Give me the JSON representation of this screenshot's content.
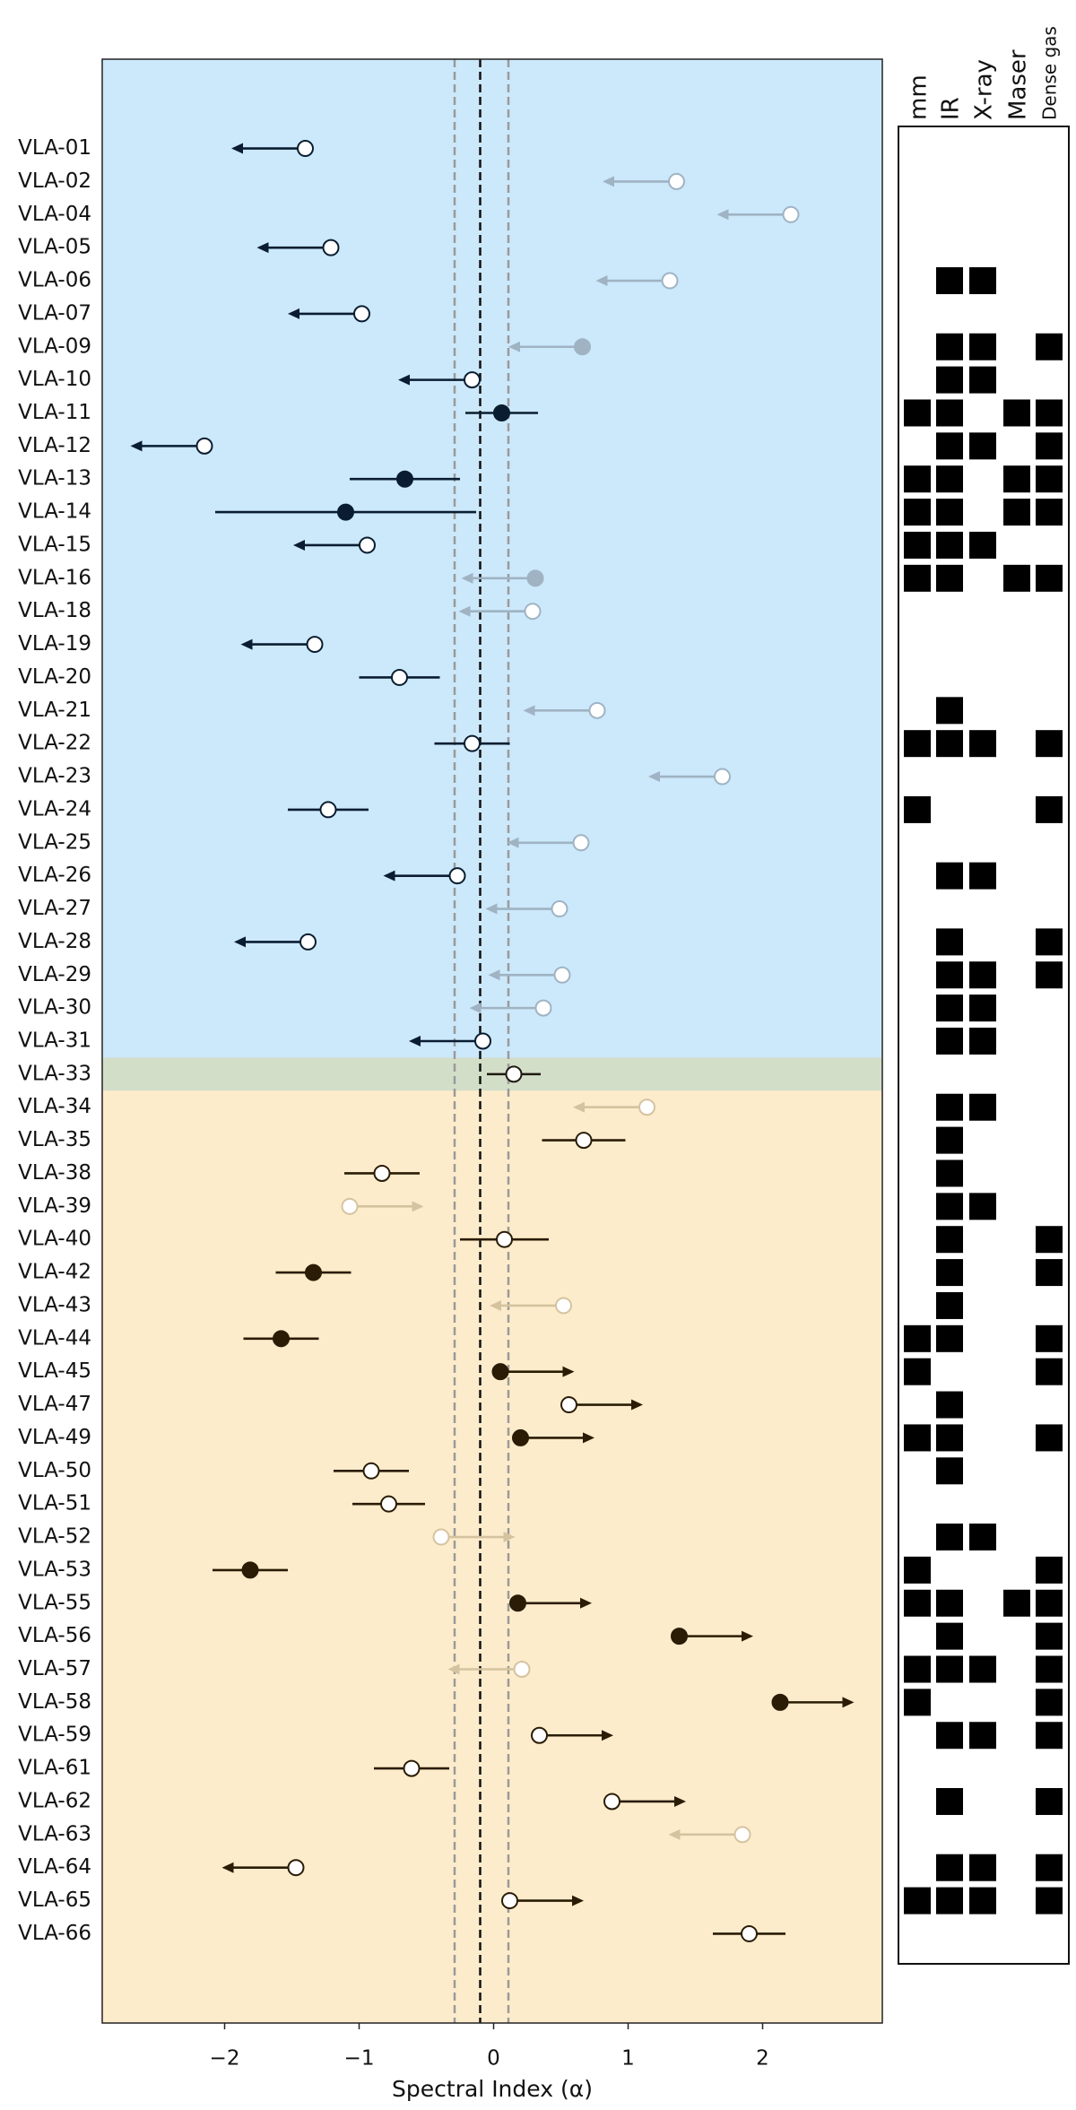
{
  "chart_data": {
    "type": "forest",
    "x_label": "Spectral Index (α)",
    "categories": [
      "VLA-01",
      "VLA-02",
      "VLA-04",
      "VLA-05",
      "VLA-06",
      "VLA-07",
      "VLA-09",
      "VLA-10",
      "VLA-11",
      "VLA-12",
      "VLA-13",
      "VLA-14",
      "VLA-15",
      "VLA-16",
      "VLA-18",
      "VLA-19",
      "VLA-20",
      "VLA-21",
      "VLA-22",
      "VLA-23",
      "VLA-24",
      "VLA-25",
      "VLA-26",
      "VLA-27",
      "VLA-28",
      "VLA-29",
      "VLA-30",
      "VLA-31",
      "VLA-33",
      "VLA-34",
      "VLA-35",
      "VLA-38",
      "VLA-39",
      "VLA-40",
      "VLA-42",
      "VLA-43",
      "VLA-44",
      "VLA-45",
      "VLA-47",
      "VLA-49",
      "VLA-50",
      "VLA-51",
      "VLA-52",
      "VLA-53",
      "VLA-55",
      "VLA-56",
      "VLA-57",
      "VLA-58",
      "VLA-59",
      "VLA-61",
      "VLA-62",
      "VLA-63",
      "VLA-64",
      "VLA-65",
      "VLA-66"
    ],
    "values": [
      -1.4,
      1.36,
      2.21,
      -1.21,
      1.31,
      -0.98,
      0.66,
      -0.16,
      0.06,
      -2.15,
      -0.66,
      -1.1,
      -0.94,
      0.31,
      0.29,
      -1.33,
      -0.7,
      0.77,
      -0.16,
      1.7,
      -1.23,
      0.65,
      -0.27,
      0.49,
      -1.38,
      0.51,
      0.37,
      -0.08,
      0.15,
      1.14,
      0.67,
      -0.83,
      -1.07,
      0.08,
      -1.34,
      0.52,
      -1.58,
      0.05,
      0.56,
      0.2,
      -0.91,
      -0.78,
      -0.39,
      -1.81,
      0.18,
      1.38,
      0.21,
      2.13,
      0.34,
      -0.61,
      0.88,
      1.85,
      -1.47,
      0.12,
      1.9
    ],
    "errors": [
      null,
      null,
      null,
      null,
      null,
      null,
      null,
      null,
      0.27,
      null,
      0.41,
      0.97,
      null,
      null,
      null,
      null,
      0.3,
      null,
      0.28,
      null,
      0.3,
      null,
      null,
      null,
      null,
      null,
      null,
      null,
      0.2,
      null,
      0.31,
      0.28,
      null,
      0.33,
      0.28,
      null,
      0.28,
      null,
      null,
      null,
      0.28,
      0.27,
      null,
      0.28,
      null,
      null,
      null,
      null,
      null,
      0.28,
      null,
      null,
      null,
      null,
      0.27
    ],
    "limit": [
      "upper",
      "upper",
      "upper",
      "upper",
      "upper",
      "upper",
      "upper",
      "upper",
      null,
      "upper",
      null,
      null,
      "upper",
      "upper",
      "upper",
      "upper",
      null,
      "upper",
      null,
      "upper",
      null,
      "upper",
      "upper",
      "upper",
      "upper",
      "upper",
      "upper",
      "upper",
      null,
      "upper",
      null,
      null,
      "lower",
      null,
      null,
      "upper",
      null,
      "lower",
      "lower",
      "lower",
      null,
      null,
      "lower",
      null,
      "lower",
      "lower",
      "upper",
      "lower",
      "lower",
      null,
      "lower",
      "upper",
      "upper",
      "lower",
      null
    ],
    "filled": [
      false,
      false,
      false,
      false,
      false,
      false,
      true,
      false,
      true,
      false,
      true,
      true,
      false,
      true,
      false,
      false,
      false,
      false,
      false,
      false,
      false,
      false,
      false,
      false,
      false,
      false,
      false,
      false,
      false,
      false,
      false,
      false,
      false,
      false,
      true,
      false,
      true,
      true,
      false,
      true,
      false,
      false,
      false,
      true,
      true,
      true,
      false,
      true,
      false,
      false,
      false,
      false,
      false,
      false,
      false
    ],
    "faded": [
      false,
      true,
      true,
      false,
      true,
      false,
      true,
      false,
      false,
      false,
      false,
      false,
      false,
      true,
      true,
      false,
      false,
      true,
      false,
      true,
      false,
      true,
      false,
      true,
      false,
      true,
      true,
      false,
      false,
      true,
      false,
      false,
      true,
      false,
      false,
      true,
      false,
      false,
      false,
      false,
      false,
      false,
      true,
      false,
      false,
      false,
      true,
      false,
      false,
      false,
      false,
      true,
      false,
      false,
      false
    ],
    "row_group": [
      0,
      0,
      0,
      0,
      0,
      0,
      0,
      0,
      0,
      0,
      0,
      0,
      0,
      0,
      0,
      0,
      0,
      0,
      0,
      0,
      0,
      0,
      0,
      0,
      0,
      0,
      0,
      0,
      1,
      2,
      2,
      2,
      2,
      2,
      2,
      2,
      2,
      2,
      2,
      2,
      2,
      2,
      2,
      2,
      2,
      2,
      2,
      2,
      2,
      2,
      2,
      2,
      2,
      2,
      2
    ],
    "groups": [
      {
        "background": "#cce8fb",
        "color": "#0a1d30",
        "faded_color": "#9fb3c3"
      },
      {
        "background": "#d3dec9",
        "color": "#1e1a10",
        "faded_color": "#aab0a0"
      },
      {
        "background": "#fdeccb",
        "color": "#2a1c05",
        "faded_color": "#d5c3a0"
      }
    ],
    "xlim": [
      -2.91,
      2.89
    ],
    "xticks": [
      {
        "value": -2,
        "label": "−2"
      },
      {
        "value": -1,
        "label": "−1"
      },
      0,
      1,
      2
    ],
    "vlines": [
      {
        "value": -0.1,
        "color": "#111111"
      },
      {
        "value": -0.29,
        "color": "#9a9a9a"
      },
      {
        "value": 0.11,
        "color": "#9a9a9a"
      }
    ],
    "detection_columns": [
      "mm",
      "IR",
      "X-ray",
      "Maser",
      "Dense gas"
    ],
    "detections": [
      [
        false,
        false,
        false,
        false,
        false
      ],
      [
        false,
        false,
        false,
        false,
        false
      ],
      [
        false,
        false,
        false,
        false,
        false
      ],
      [
        false,
        false,
        false,
        false,
        false
      ],
      [
        false,
        true,
        true,
        false,
        false
      ],
      [
        false,
        false,
        false,
        false,
        false
      ],
      [
        false,
        true,
        true,
        false,
        true
      ],
      [
        false,
        true,
        true,
        false,
        false
      ],
      [
        true,
        true,
        false,
        true,
        true
      ],
      [
        false,
        true,
        true,
        false,
        true
      ],
      [
        true,
        true,
        false,
        true,
        true
      ],
      [
        true,
        true,
        false,
        true,
        true
      ],
      [
        true,
        true,
        true,
        false,
        false
      ],
      [
        true,
        true,
        false,
        true,
        true
      ],
      [
        false,
        false,
        false,
        false,
        false
      ],
      [
        false,
        false,
        false,
        false,
        false
      ],
      [
        false,
        false,
        false,
        false,
        false
      ],
      [
        false,
        true,
        false,
        false,
        false
      ],
      [
        true,
        true,
        true,
        false,
        true
      ],
      [
        false,
        false,
        false,
        false,
        false
      ],
      [
        true,
        false,
        false,
        false,
        true
      ],
      [
        false,
        false,
        false,
        false,
        false
      ],
      [
        false,
        true,
        true,
        false,
        false
      ],
      [
        false,
        false,
        false,
        false,
        false
      ],
      [
        false,
        true,
        false,
        false,
        true
      ],
      [
        false,
        true,
        true,
        false,
        true
      ],
      [
        false,
        true,
        true,
        false,
        false
      ],
      [
        false,
        true,
        true,
        false,
        false
      ],
      [
        false,
        false,
        false,
        false,
        false
      ],
      [
        false,
        true,
        true,
        false,
        false
      ],
      [
        false,
        true,
        false,
        false,
        false
      ],
      [
        false,
        true,
        false,
        false,
        false
      ],
      [
        false,
        true,
        true,
        false,
        false
      ],
      [
        false,
        true,
        false,
        false,
        true
      ],
      [
        false,
        true,
        false,
        false,
        true
      ],
      [
        false,
        true,
        false,
        false,
        false
      ],
      [
        true,
        true,
        false,
        false,
        true
      ],
      [
        true,
        false,
        false,
        false,
        true
      ],
      [
        false,
        true,
        false,
        false,
        false
      ],
      [
        true,
        true,
        false,
        false,
        true
      ],
      [
        false,
        true,
        false,
        false,
        false
      ],
      [
        false,
        false,
        false,
        false,
        false
      ],
      [
        false,
        true,
        true,
        false,
        false
      ],
      [
        true,
        false,
        false,
        false,
        true
      ],
      [
        true,
        true,
        false,
        true,
        true
      ],
      [
        false,
        true,
        false,
        false,
        true
      ],
      [
        true,
        true,
        true,
        false,
        true
      ],
      [
        true,
        false,
        false,
        false,
        true
      ],
      [
        false,
        true,
        true,
        false,
        true
      ],
      [
        false,
        false,
        false,
        false,
        false
      ],
      [
        false,
        true,
        false,
        false,
        true
      ],
      [
        false,
        false,
        false,
        false,
        false
      ],
      [
        false,
        true,
        true,
        false,
        true
      ],
      [
        true,
        true,
        true,
        false,
        true
      ],
      [
        false,
        false,
        false,
        false,
        false
      ]
    ]
  }
}
